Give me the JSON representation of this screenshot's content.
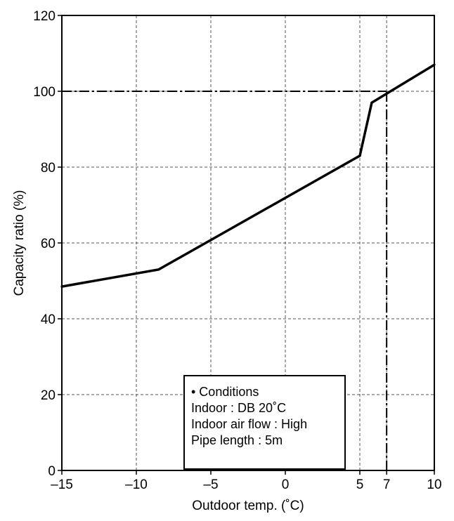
{
  "chart_data": {
    "type": "line",
    "title": "",
    "xlabel": "Outdoor temp. (˚C)",
    "ylabel": "Capacity ratio (%)",
    "xlim": [
      -15,
      10
    ],
    "ylim": [
      0,
      120
    ],
    "x_ticks": [
      -15,
      -10,
      -5,
      0,
      5,
      6.8,
      10
    ],
    "x_tick_labels": [
      "–15",
      "–10",
      "–5",
      "0",
      "5",
      "7",
      "10"
    ],
    "y_ticks": [
      0,
      20,
      40,
      60,
      80,
      100,
      120
    ],
    "y_tick_labels": [
      "0",
      "20",
      "40",
      "60",
      "80",
      "100",
      "120"
    ],
    "grid": true,
    "series": [
      {
        "x": [
          -15,
          -8.5,
          5,
          5.8,
          10
        ],
        "y": [
          48.5,
          53,
          83,
          97,
          107
        ],
        "style": "solid"
      }
    ],
    "reference_lines": [
      {
        "orientation": "horizontal",
        "y": 100,
        "x_from": -15,
        "x_to": 6.8,
        "style": "dash-dot"
      },
      {
        "orientation": "vertical",
        "x": 6.8,
        "y_from": 0,
        "y_to": 100,
        "style": "dash-dot"
      }
    ],
    "annotation": {
      "lines": [
        "• Conditions",
        "Indoor : DB 20˚C",
        "Indoor air flow : High",
        "Pipe length : 5m"
      ]
    }
  }
}
